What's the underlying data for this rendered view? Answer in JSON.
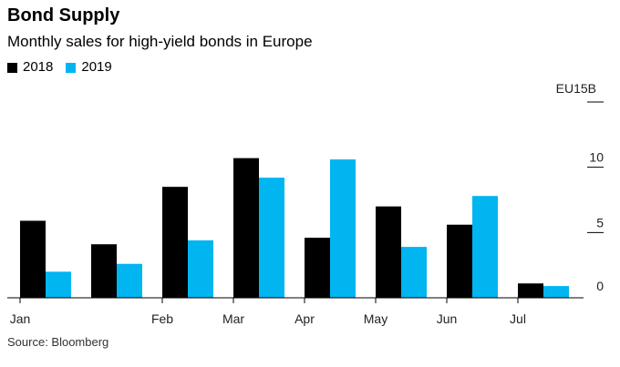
{
  "header": {
    "title": "Bond Supply",
    "subtitle": "Monthly sales for high-yield bonds in Europe"
  },
  "source": "Source: Bloomberg",
  "chart_data": {
    "type": "bar",
    "title": "Bond Supply",
    "subtitle": "Monthly sales for high-yield bonds in Europe",
    "xlabel": "",
    "ylabel": "",
    "y_unit_label": "EU15B",
    "y_ticks": [
      {
        "value": 0,
        "label": "0"
      },
      {
        "value": 5,
        "label": "5"
      },
      {
        "value": 10,
        "label": "10"
      },
      {
        "value": 15,
        "label": ""
      }
    ],
    "ylim": [
      0,
      15
    ],
    "grid": false,
    "legend_position": "top-left",
    "groups": 8,
    "x_tick_labels": [
      {
        "group": 0,
        "label": "Jan"
      },
      {
        "group": 2,
        "label": "Feb"
      },
      {
        "group": 3,
        "label": "Mar"
      },
      {
        "group": 4,
        "label": "Apr"
      },
      {
        "group": 5,
        "label": "May"
      },
      {
        "group": 6,
        "label": "Jun"
      },
      {
        "group": 7,
        "label": "Jul"
      }
    ],
    "series": [
      {
        "name": "2018",
        "color": "#000000",
        "values": [
          5.9,
          4.1,
          8.5,
          10.7,
          4.6,
          7.0,
          5.6,
          1.1
        ]
      },
      {
        "name": "2019",
        "color": "#00b5f0",
        "values": [
          2.0,
          2.6,
          4.4,
          9.2,
          10.6,
          3.9,
          7.8,
          0.9
        ]
      }
    ]
  }
}
